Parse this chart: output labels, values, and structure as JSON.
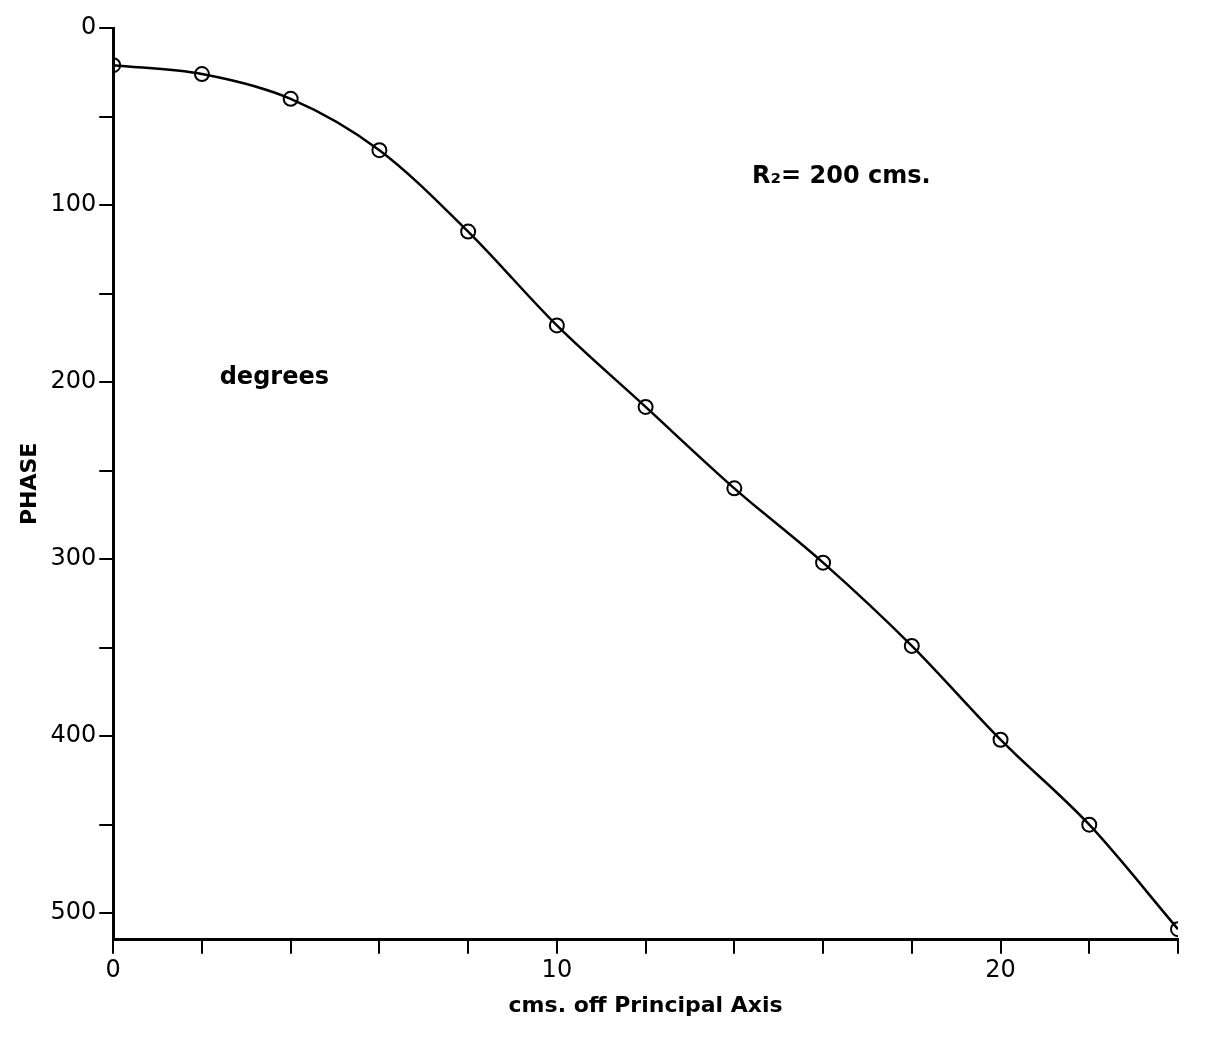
{
  "chart_data": {
    "type": "line",
    "xlabel": "cms. off Principal Axis",
    "ylabel": "PHASE",
    "annotations": [
      "R₂= 200 cms.",
      "degrees"
    ],
    "x": [
      0,
      2,
      4,
      6,
      8,
      10,
      12,
      14,
      16,
      18,
      20,
      22,
      24
    ],
    "series": [
      {
        "color": "#000000",
        "values": [
          21,
          26,
          40,
          69,
          115,
          168,
          214,
          260,
          302,
          349,
          402,
          450,
          509
        ]
      }
    ],
    "xlim": [
      0,
      24
    ],
    "xticks": [
      0,
      {
        "value": 2,
        "label": null
      },
      {
        "value": 4,
        "label": null
      },
      {
        "value": 6,
        "label": null
      },
      {
        "value": 8,
        "label": null
      },
      10,
      {
        "value": 12,
        "label": null
      },
      {
        "value": 14,
        "label": null
      },
      {
        "value": 16,
        "label": null
      },
      {
        "value": 18,
        "label": null
      },
      20,
      {
        "value": 22,
        "label": null
      },
      {
        "value": 24,
        "label": null
      }
    ],
    "ylim": [
      515,
      0
    ],
    "yticks": [
      0,
      {
        "value": 50,
        "label": null
      },
      100,
      {
        "value": 150,
        "label": null
      },
      200,
      {
        "value": 250,
        "label": null
      },
      300,
      {
        "value": 350,
        "label": null
      },
      400,
      {
        "value": 450,
        "label": null
      },
      500
    ],
    "grid": false,
    "legend": false,
    "marker": "circle",
    "line_style": "solid"
  }
}
